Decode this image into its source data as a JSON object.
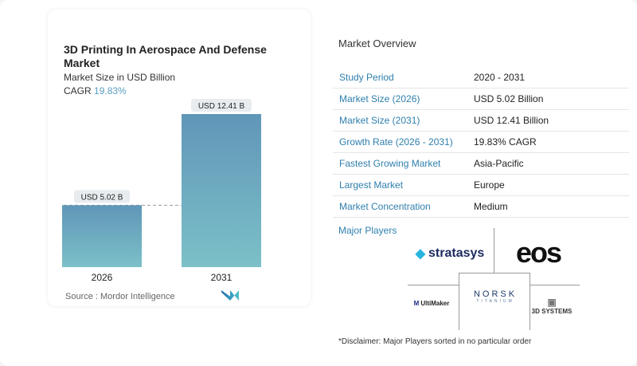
{
  "chart_data": {
    "type": "bar",
    "title": "3D Printing In Aerospace And Defense Market",
    "subtitle": "Market Size in USD Billion",
    "cagr_label": "CAGR",
    "cagr_value": "19.83%",
    "categories": [
      "2026",
      "2031"
    ],
    "values": [
      5.02,
      12.41
    ],
    "data_labels": [
      "USD 5.02 B",
      "USD 12.41 B"
    ],
    "reference_line": "dashed at 2026 value",
    "colors": {
      "bar_top": "#6096b8",
      "bar_bottom": "#7cc0c8"
    }
  },
  "source": "Source :  Mordor Intelligence",
  "overview": {
    "title": "Market Overview",
    "rows": [
      {
        "label": "Study Period",
        "value": "2020 - 2031"
      },
      {
        "label": "Market Size (2026)",
        "value": "USD 5.02 Billion"
      },
      {
        "label": "Market Size (2031)",
        "value": "USD 12.41 Billion"
      },
      {
        "label": "Growth Rate (2026 - 2031)",
        "value": "19.83% CAGR"
      },
      {
        "label": "Fastest Growing Market",
        "value": "Asia-Pacific"
      },
      {
        "label": "Largest Market",
        "value": "Europe"
      },
      {
        "label": "Market Concentration",
        "value": "Medium"
      }
    ]
  },
  "players": {
    "title": "Major Players",
    "logos": [
      "stratasys",
      "eos",
      "UltiMaker",
      "NORSK",
      "TITANIUM",
      "3D SYSTEMS"
    ]
  },
  "disclaimer": "*Disclaimer: Major Players sorted in no particular order"
}
